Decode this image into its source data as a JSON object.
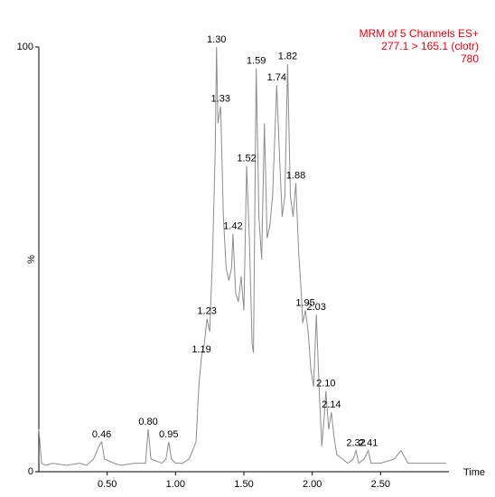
{
  "chart_data": {
    "type": "line",
    "header_lines": [
      "MRM of 5 Channels ES+",
      "277.1 > 165.1 (clotr)",
      "780"
    ],
    "header_color": "#e8000b",
    "xlabel": "Time",
    "ylabel": "%",
    "color": "#8c8c8c",
    "x": [
      0.0,
      0.02,
      0.05,
      0.1,
      0.2,
      0.3,
      0.35,
      0.4,
      0.44,
      0.46,
      0.48,
      0.55,
      0.6,
      0.7,
      0.78,
      0.8,
      0.82,
      0.9,
      0.93,
      0.95,
      0.97,
      1.0,
      1.05,
      1.1,
      1.15,
      1.17,
      1.19,
      1.21,
      1.23,
      1.25,
      1.27,
      1.29,
      1.3,
      1.31,
      1.33,
      1.35,
      1.37,
      1.39,
      1.41,
      1.42,
      1.44,
      1.46,
      1.48,
      1.5,
      1.52,
      1.54,
      1.56,
      1.57,
      1.59,
      1.61,
      1.63,
      1.65,
      1.67,
      1.69,
      1.71,
      1.74,
      1.76,
      1.78,
      1.8,
      1.82,
      1.84,
      1.86,
      1.88,
      1.9,
      1.92,
      1.93,
      1.95,
      1.97,
      1.99,
      2.01,
      2.03,
      2.05,
      2.07,
      2.09,
      2.1,
      2.12,
      2.14,
      2.16,
      2.18,
      2.22,
      2.26,
      2.3,
      2.32,
      2.34,
      2.38,
      2.41,
      2.43,
      2.5,
      2.6,
      2.65,
      2.7,
      2.8,
      2.9,
      2.98
    ],
    "values": [
      10,
      2,
      1.5,
      2,
      1.5,
      2,
      1.5,
      3,
      6,
      7,
      3,
      2,
      1.5,
      2,
      2,
      10,
      3,
      2,
      3,
      7,
      3,
      2,
      2,
      3,
      7,
      20,
      27,
      30,
      36,
      33,
      50,
      75,
      100,
      82,
      86,
      60,
      48,
      45,
      48,
      56,
      42,
      40,
      46,
      38,
      72,
      55,
      30,
      28,
      95,
      60,
      50,
      82,
      55,
      58,
      65,
      91,
      75,
      60,
      65,
      96,
      65,
      60,
      68,
      52,
      42,
      35,
      38,
      33,
      24,
      20,
      37,
      20,
      6,
      14,
      19,
      10,
      14,
      8,
      4,
      3,
      2,
      3,
      5,
      2,
      3,
      5,
      2,
      2,
      3,
      5,
      2,
      2,
      2,
      2
    ],
    "peak_labels": [
      {
        "value": 0.46,
        "label": "0.46"
      },
      {
        "value": 0.8,
        "label": "0.80"
      },
      {
        "value": 0.95,
        "label": "0.95"
      },
      {
        "value": 1.19,
        "label": "1.19"
      },
      {
        "value": 1.23,
        "label": "1.23"
      },
      {
        "value": 1.3,
        "label": "1.30"
      },
      {
        "value": 1.33,
        "label": "1.33"
      },
      {
        "value": 1.42,
        "label": "1.42"
      },
      {
        "value": 1.52,
        "label": "1.52"
      },
      {
        "value": 1.59,
        "label": "1.59"
      },
      {
        "value": 1.74,
        "label": "1.74"
      },
      {
        "value": 1.82,
        "label": "1.82"
      },
      {
        "value": 1.88,
        "label": "1.88"
      },
      {
        "value": 1.95,
        "label": "1.95"
      },
      {
        "value": 2.03,
        "label": "2.03"
      },
      {
        "value": 2.1,
        "label": "2.10"
      },
      {
        "value": 2.14,
        "label": "2.14"
      },
      {
        "value": 2.32,
        "label": "2.32"
      },
      {
        "value": 2.41,
        "label": "2.41"
      }
    ],
    "xlim": [
      0,
      3.0
    ],
    "xticks": [
      {
        "value": 0.5,
        "label": "0.50"
      },
      {
        "value": 1.0,
        "label": "1.00"
      },
      {
        "value": 1.5,
        "label": "1.50"
      },
      {
        "value": 2.0,
        "label": "2.00"
      },
      {
        "value": 2.5,
        "label": "2.50"
      }
    ],
    "ylim": [
      0,
      100
    ],
    "yticks": [
      0,
      100
    ]
  }
}
